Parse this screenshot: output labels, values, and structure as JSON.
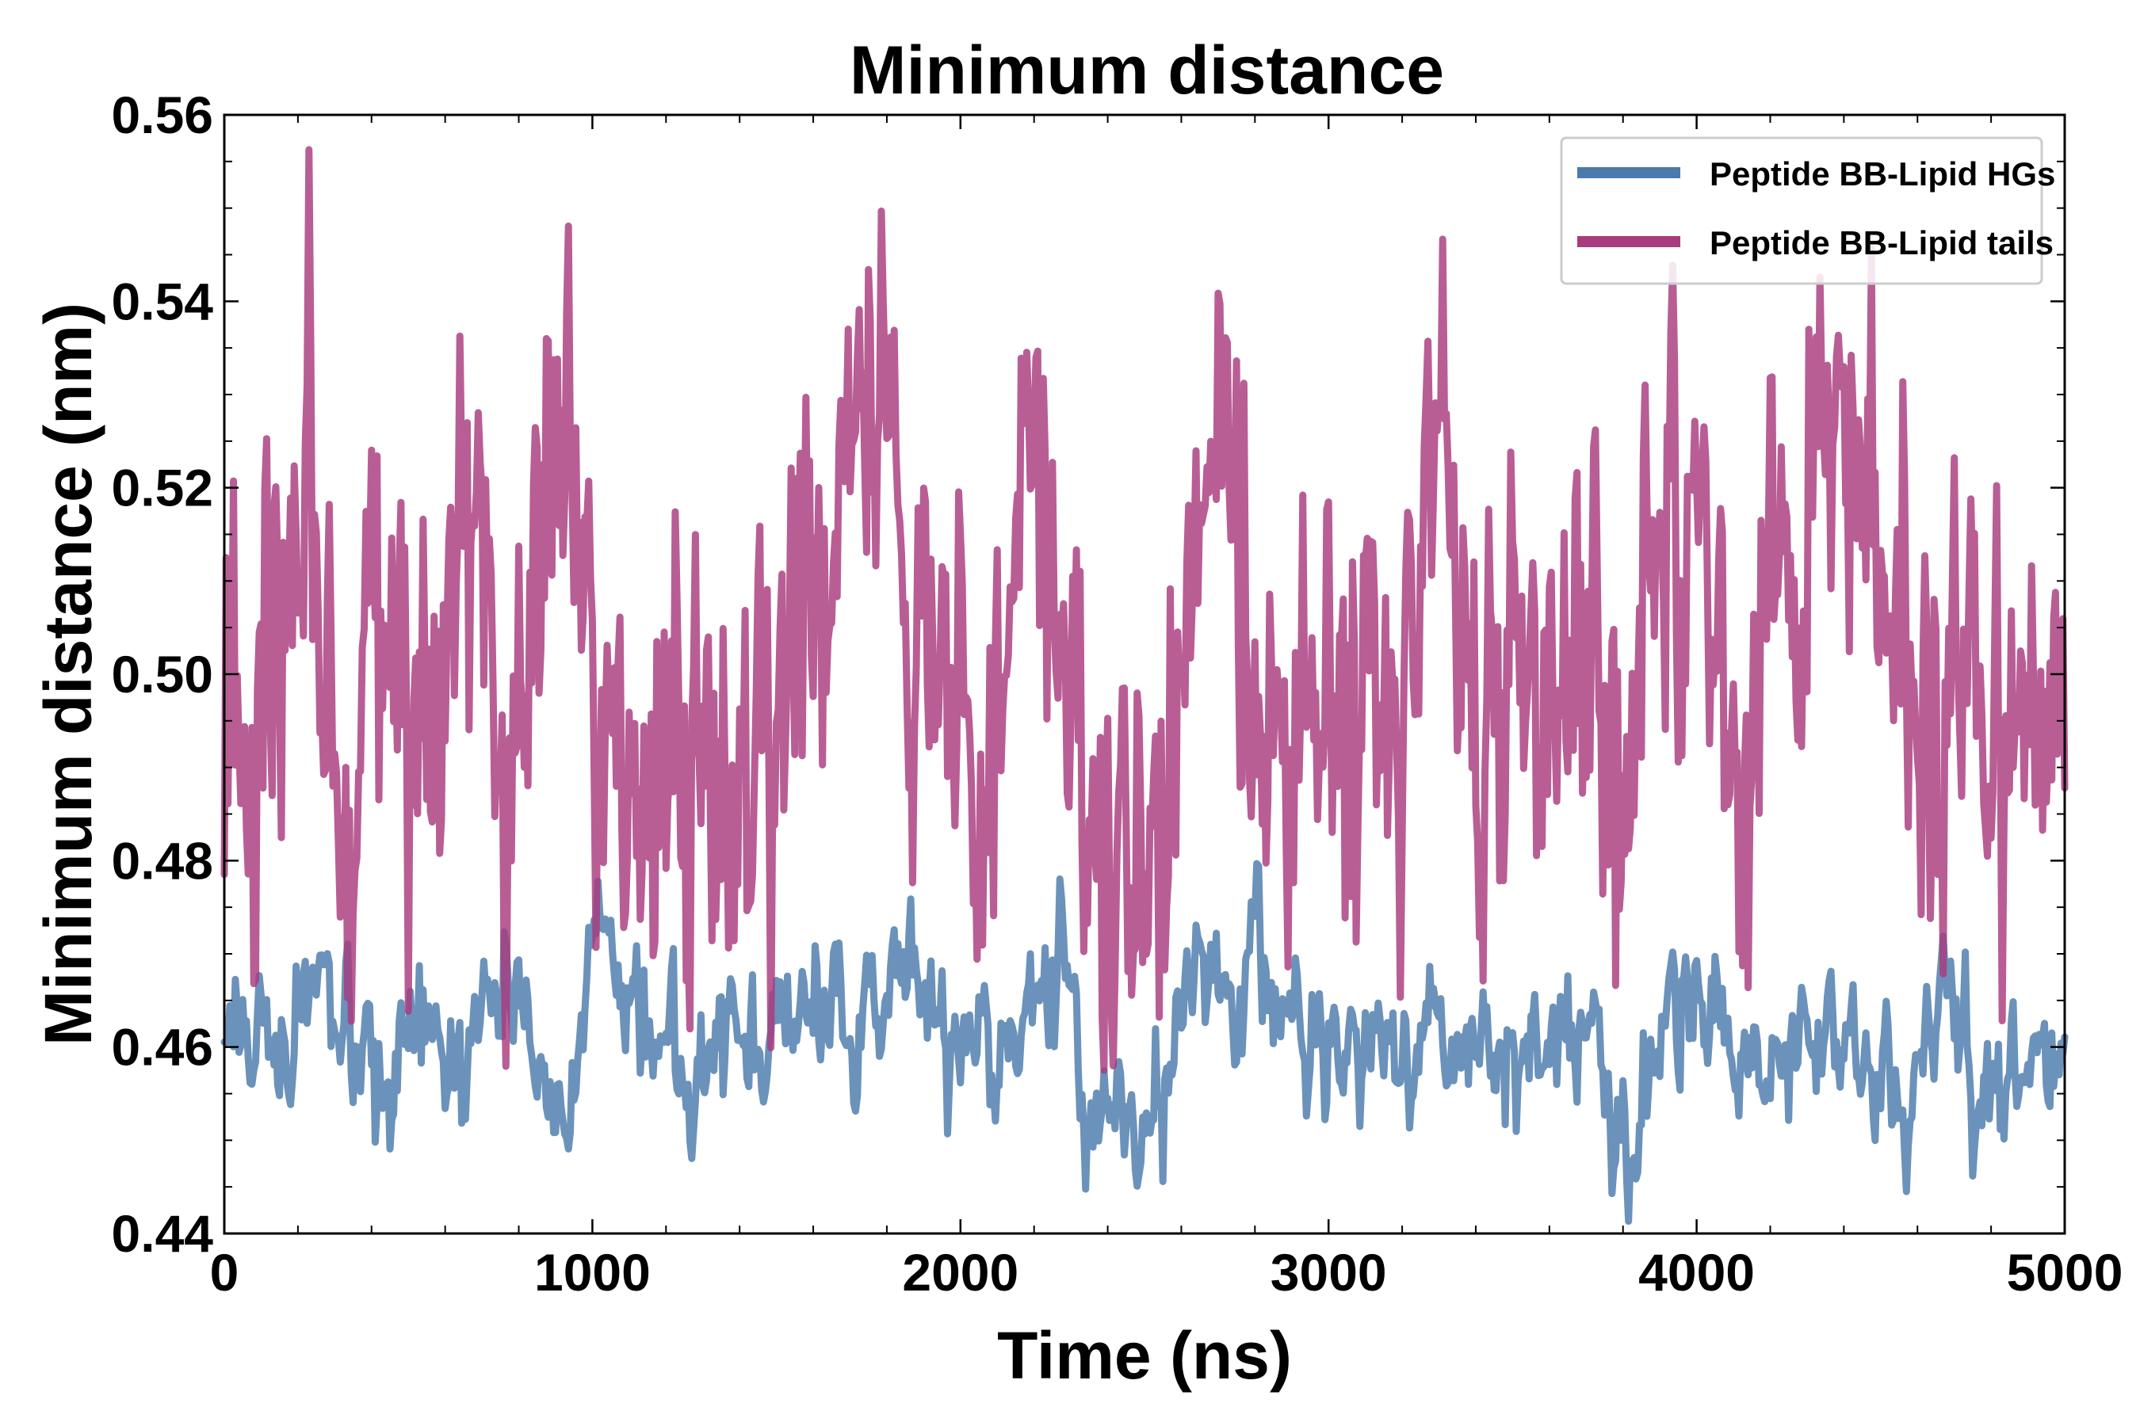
{
  "chart_data": {
    "type": "line",
    "title": "Minimum distance",
    "xlabel": "Time (ns)",
    "ylabel": "Minimum distance (nm)",
    "xlim": [
      0,
      5000
    ],
    "ylim": [
      0.44,
      0.56
    ],
    "x_ticks": [
      0,
      1000,
      2000,
      3000,
      4000,
      5000
    ],
    "x_tick_labels": [
      "0",
      "1000",
      "2000",
      "3000",
      "4000",
      "5000"
    ],
    "x_minor_step": 200,
    "y_ticks": [
      0.44,
      0.46,
      0.48,
      0.5,
      0.52,
      0.54,
      0.56
    ],
    "y_tick_labels": [
      "0.44",
      "0.46",
      "0.48",
      "0.50",
      "0.52",
      "0.54",
      "0.56"
    ],
    "y_minor_step": 0.005,
    "grid": false,
    "legend_position": "top-right",
    "x_step": 5,
    "series": [
      {
        "name": "Peptide BB-Lipid HGs",
        "color": "#4a7aab",
        "mean": 0.461,
        "noise_sd": 0.0045,
        "smoothing": 0.55,
        "seed": 17,
        "anchors": [
          [
            0,
            0.457
          ],
          [
            20,
            0.469
          ],
          [
            60,
            0.462
          ],
          [
            200,
            0.461
          ],
          [
            250,
            0.468
          ],
          [
            330,
            0.458
          ],
          [
            400,
            0.452
          ],
          [
            430,
            0.447
          ],
          [
            470,
            0.456
          ],
          [
            560,
            0.461
          ],
          [
            620,
            0.452
          ],
          [
            700,
            0.466
          ],
          [
            760,
            0.469
          ],
          [
            880,
            0.456
          ],
          [
            930,
            0.451
          ],
          [
            990,
            0.472
          ],
          [
            1200,
            0.459
          ],
          [
            1400,
            0.461
          ],
          [
            1600,
            0.462
          ],
          [
            1900,
            0.47
          ],
          [
            2000,
            0.456
          ],
          [
            2200,
            0.465
          ],
          [
            2280,
            0.477
          ],
          [
            2350,
            0.453
          ],
          [
            2500,
            0.445
          ],
          [
            2600,
            0.462
          ],
          [
            2690,
            0.477
          ],
          [
            2750,
            0.46
          ],
          [
            2810,
            0.479
          ],
          [
            2850,
            0.468
          ],
          [
            3000,
            0.459
          ],
          [
            3300,
            0.462
          ],
          [
            3500,
            0.458
          ],
          [
            3700,
            0.462
          ],
          [
            3800,
            0.447
          ],
          [
            3820,
            0.445
          ],
          [
            3900,
            0.462
          ],
          [
            4000,
            0.467
          ],
          [
            4200,
            0.458
          ],
          [
            4400,
            0.464
          ],
          [
            4560,
            0.448
          ],
          [
            4700,
            0.472
          ],
          [
            4750,
            0.449
          ],
          [
            4900,
            0.461
          ],
          [
            5000,
            0.46
          ]
        ]
      },
      {
        "name": "Peptide BB-Lipid tails",
        "color": "#a83a7e",
        "mean": 0.498,
        "noise_sd": 0.011,
        "smoothing": 0.35,
        "seed": 91,
        "anchors": [
          [
            0,
            0.496
          ],
          [
            60,
            0.49
          ],
          [
            120,
            0.5
          ],
          [
            230,
            0.527
          ],
          [
            300,
            0.478
          ],
          [
            330,
            0.471
          ],
          [
            400,
            0.503
          ],
          [
            480,
            0.508
          ],
          [
            560,
            0.492
          ],
          [
            650,
            0.505
          ],
          [
            710,
            0.521
          ],
          [
            760,
            0.475
          ],
          [
            850,
            0.5
          ],
          [
            935,
            0.543
          ],
          [
            1000,
            0.49
          ],
          [
            1100,
            0.488
          ],
          [
            1300,
            0.484
          ],
          [
            1340,
            0.475
          ],
          [
            1500,
            0.5
          ],
          [
            1560,
            0.512
          ],
          [
            1700,
            0.53
          ],
          [
            1790,
            0.553
          ],
          [
            1850,
            0.505
          ],
          [
            1960,
            0.5
          ],
          [
            2050,
            0.473
          ],
          [
            2200,
            0.535
          ],
          [
            2300,
            0.496
          ],
          [
            2440,
            0.47
          ],
          [
            2460,
            0.468
          ],
          [
            2600,
            0.495
          ],
          [
            2700,
            0.546
          ],
          [
            2800,
            0.488
          ],
          [
            3000,
            0.5
          ],
          [
            3200,
            0.495
          ],
          [
            3300,
            0.543
          ],
          [
            3420,
            0.468
          ],
          [
            3500,
            0.5
          ],
          [
            3800,
            0.498
          ],
          [
            3980,
            0.535
          ],
          [
            4100,
            0.49
          ],
          [
            4200,
            0.502
          ],
          [
            4300,
            0.53
          ],
          [
            4400,
            0.535
          ],
          [
            4500,
            0.51
          ],
          [
            4700,
            0.493
          ],
          [
            4900,
            0.492
          ],
          [
            5000,
            0.512
          ]
        ]
      }
    ]
  }
}
